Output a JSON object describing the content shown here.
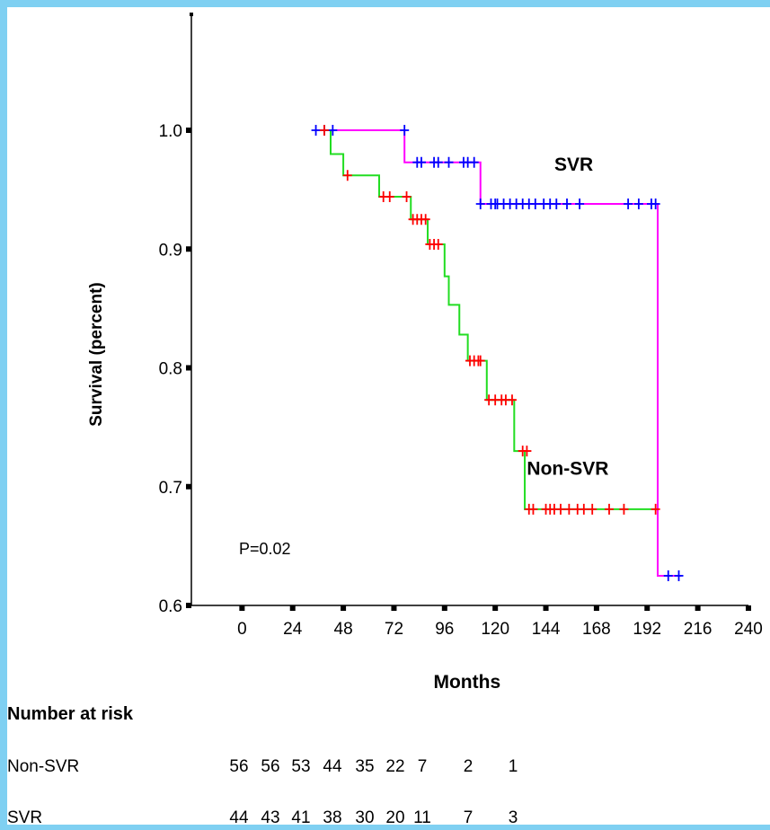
{
  "chart_data": {
    "type": "line",
    "subtype": "kaplan-meier",
    "ylabel": "Survival (percent)",
    "xlabel": "Months",
    "xlim": [
      -24,
      240
    ],
    "ylim": [
      0.6,
      1.0
    ],
    "x_ticks": [
      0,
      24,
      48,
      72,
      96,
      120,
      144,
      168,
      192,
      216,
      240
    ],
    "y_ticks": [
      0.6,
      0.7,
      0.8,
      0.9,
      1.0
    ],
    "y_tick_labels": [
      "0.6",
      "0.7",
      "0.8",
      "0.9",
      "1.0"
    ],
    "annotation": "P=0.02",
    "series": [
      {
        "name": "SVR",
        "color": "#ff00ff",
        "censor_color": "#0000ff",
        "steps": [
          [
            35,
            1.0
          ],
          [
            77,
            0.973
          ],
          [
            113,
            0.938
          ],
          [
            197,
            0.625
          ],
          [
            208,
            0.625
          ]
        ],
        "censored": [
          [
            35,
            1.0
          ],
          [
            39,
            1.0
          ],
          [
            43,
            1.0
          ],
          [
            77,
            1.0
          ],
          [
            83,
            0.973
          ],
          [
            85,
            0.973
          ],
          [
            91,
            0.973
          ],
          [
            93,
            0.973
          ],
          [
            98,
            0.973
          ],
          [
            105,
            0.973
          ],
          [
            107,
            0.973
          ],
          [
            110,
            0.973
          ],
          [
            113,
            0.938
          ],
          [
            118,
            0.938
          ],
          [
            120,
            0.938
          ],
          [
            121,
            0.938
          ],
          [
            124,
            0.938
          ],
          [
            127,
            0.938
          ],
          [
            130,
            0.938
          ],
          [
            133,
            0.938
          ],
          [
            136,
            0.938
          ],
          [
            139,
            0.938
          ],
          [
            143,
            0.938
          ],
          [
            146,
            0.938
          ],
          [
            149,
            0.938
          ],
          [
            154,
            0.938
          ],
          [
            160,
            0.938
          ],
          [
            183,
            0.938
          ],
          [
            188,
            0.938
          ],
          [
            194,
            0.938
          ],
          [
            196,
            0.938
          ],
          [
            202,
            0.625
          ],
          [
            207,
            0.625
          ]
        ]
      },
      {
        "name": "Non-SVR",
        "color": "#22dd22",
        "censor_color": "#ff0000",
        "steps": [
          [
            38,
            1.0
          ],
          [
            42,
            0.98
          ],
          [
            48,
            0.962
          ],
          [
            65,
            0.944
          ],
          [
            80,
            0.925
          ],
          [
            88,
            0.904
          ],
          [
            96,
            0.877
          ],
          [
            98,
            0.853
          ],
          [
            103,
            0.828
          ],
          [
            107,
            0.806
          ],
          [
            116,
            0.773
          ],
          [
            129,
            0.73
          ],
          [
            134,
            0.681
          ],
          [
            197,
            0.681
          ]
        ],
        "censored": [
          [
            39,
            1.0
          ],
          [
            50,
            0.962
          ],
          [
            67,
            0.944
          ],
          [
            70,
            0.944
          ],
          [
            78,
            0.944
          ],
          [
            81,
            0.925
          ],
          [
            83,
            0.925
          ],
          [
            85,
            0.925
          ],
          [
            87,
            0.925
          ],
          [
            89,
            0.904
          ],
          [
            91,
            0.904
          ],
          [
            93,
            0.904
          ],
          [
            108,
            0.806
          ],
          [
            110,
            0.806
          ],
          [
            112,
            0.806
          ],
          [
            113,
            0.806
          ],
          [
            117,
            0.773
          ],
          [
            120,
            0.773
          ],
          [
            123,
            0.773
          ],
          [
            125,
            0.773
          ],
          [
            128,
            0.773
          ],
          [
            133,
            0.73
          ],
          [
            135,
            0.73
          ],
          [
            136,
            0.681
          ],
          [
            138,
            0.681
          ],
          [
            144,
            0.681
          ],
          [
            146,
            0.681
          ],
          [
            148,
            0.681
          ],
          [
            151,
            0.681
          ],
          [
            155,
            0.681
          ],
          [
            159,
            0.681
          ],
          [
            162,
            0.681
          ],
          [
            166,
            0.681
          ],
          [
            174,
            0.681
          ],
          [
            181,
            0.681
          ],
          [
            196,
            0.681
          ]
        ]
      }
    ],
    "series_labels": [
      "SVR",
      "Non-SVR"
    ]
  },
  "risk_table": {
    "header": "Number at risk",
    "rows": [
      {
        "label": "Non-SVR",
        "values": [
          "56",
          "56",
          "53",
          "44",
          "35",
          "22",
          "7",
          "2",
          "1"
        ]
      },
      {
        "label": "SVR",
        "values": [
          "44",
          "43",
          "41",
          "38",
          "30",
          "20",
          "11",
          "7",
          "3"
        ]
      }
    ]
  },
  "colors": {
    "background_border": "#7fd0f2"
  }
}
